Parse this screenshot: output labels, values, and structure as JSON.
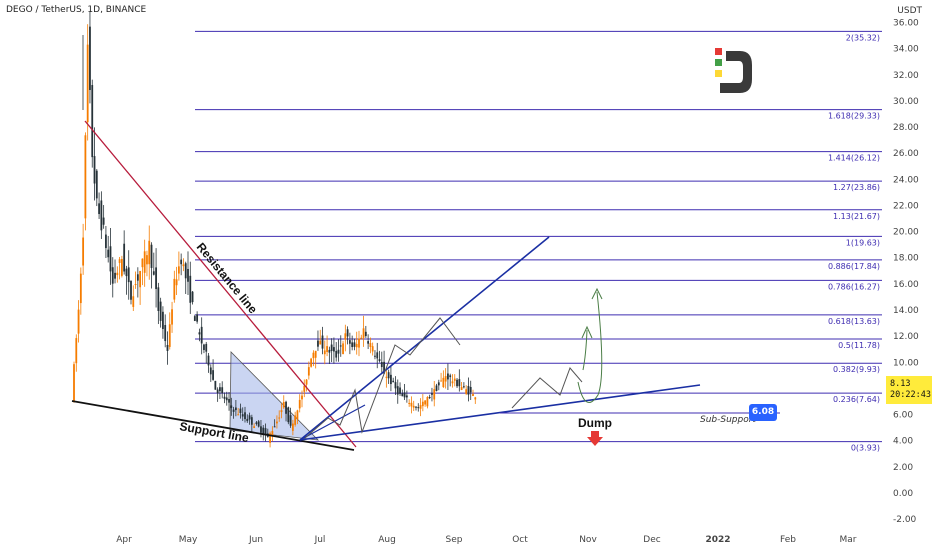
{
  "header": {
    "symbol": "DEGO / TetherUS, 1D, BINANCE",
    "currency": "USDT"
  },
  "price_tag": {
    "price": "8.13",
    "countdown": "20:22:43"
  },
  "sub_support": {
    "label": "Sub-Support",
    "value": "6.08"
  },
  "annotations": {
    "resistance": "Resistance line",
    "support": "Support line",
    "dump": "Dump"
  },
  "colors": {
    "background": "#ffffff",
    "fib": "#3f2db1",
    "resistance": "#b71c3c",
    "channel": "#1a2fa3",
    "support": "#111111",
    "arrow": "#4a7d45",
    "candle_up": "#f57c00",
    "candle_down": "#263238",
    "wedge_fill": "#9fb3e8",
    "sub_support_tag": "#2962ff",
    "price_tag": "#ffeb3b"
  },
  "chart_data": {
    "type": "candlestick",
    "title": "DEGO / TetherUS, 1D, BINANCE",
    "ylabel": "USDT",
    "ylim": [
      -3,
      37
    ],
    "y_ticks": [
      "36.00",
      "34.00",
      "32.00",
      "30.00",
      "28.00",
      "26.00",
      "24.00",
      "22.00",
      "20.00",
      "18.00",
      "16.00",
      "14.00",
      "12.00",
      "10.00",
      "8.00",
      "6.00",
      "4.00",
      "2.00",
      "0.00",
      "-2.00"
    ],
    "x_ticks": [
      "Apr",
      "May",
      "Jun",
      "Jul",
      "Aug",
      "Sep",
      "Oct",
      "Nov",
      "Dec",
      "2022",
      "Feb",
      "Mar"
    ],
    "fib_levels": [
      {
        "ratio": "0",
        "price": "3.93"
      },
      {
        "ratio": "0.236",
        "price": "7.64"
      },
      {
        "ratio": "0.382",
        "price": "9.93"
      },
      {
        "ratio": "0.5",
        "price": "11.78"
      },
      {
        "ratio": "0.618",
        "price": "13.63"
      },
      {
        "ratio": "0.786",
        "price": "16.27"
      },
      {
        "ratio": "0.886",
        "price": "17.84"
      },
      {
        "ratio": "1",
        "price": "19.63"
      },
      {
        "ratio": "1.13",
        "price": "21.67"
      },
      {
        "ratio": "1.27",
        "price": "23.86"
      },
      {
        "ratio": "1.414",
        "price": "26.12"
      },
      {
        "ratio": "1.618",
        "price": "29.33"
      },
      {
        "ratio": "2",
        "price": "35.32"
      }
    ],
    "price_series": [
      [
        0,
        7.5
      ],
      [
        3,
        14
      ],
      [
        5,
        20
      ],
      [
        7,
        34
      ],
      [
        9,
        26
      ],
      [
        11,
        22
      ],
      [
        14,
        20
      ],
      [
        18,
        16
      ],
      [
        22,
        18
      ],
      [
        26,
        15
      ],
      [
        30,
        17
      ],
      [
        34,
        19
      ],
      [
        38,
        14
      ],
      [
        42,
        11
      ],
      [
        45,
        16
      ],
      [
        48,
        18
      ],
      [
        52,
        15
      ],
      [
        56,
        12
      ],
      [
        60,
        10
      ],
      [
        63,
        8
      ],
      [
        66,
        7.5
      ],
      [
        70,
        6.5
      ],
      [
        74,
        6
      ],
      [
        78,
        5.5
      ],
      [
        82,
        5
      ],
      [
        86,
        4.2
      ],
      [
        90,
        5.5
      ],
      [
        93,
        6.8
      ],
      [
        96,
        5
      ],
      [
        99,
        6.5
      ],
      [
        102,
        8
      ],
      [
        105,
        10.5
      ],
      [
        108,
        11.5
      ],
      [
        112,
        11
      ],
      [
        116,
        10.5
      ],
      [
        120,
        12
      ],
      [
        124,
        11
      ],
      [
        128,
        12.5
      ],
      [
        132,
        11
      ],
      [
        136,
        9.5
      ],
      [
        140,
        8.5
      ],
      [
        144,
        7.5
      ],
      [
        148,
        7
      ],
      [
        152,
        6.5
      ],
      [
        156,
        7.2
      ],
      [
        160,
        8
      ],
      [
        164,
        9
      ],
      [
        168,
        8.5
      ],
      [
        172,
        8
      ],
      [
        176,
        7.5
      ]
    ],
    "lines": [
      {
        "name": "Resistance line",
        "from": {
          "day": 7,
          "price": 28.5
        },
        "to": {
          "day": 123,
          "price": 3.5
        }
      },
      {
        "name": "Support line",
        "from": {
          "day": 0,
          "price": 7.2
        },
        "to": {
          "day": 123,
          "price": 3.3
        }
      },
      {
        "name": "Channel upper",
        "from": {
          "day": 92,
          "price": 4
        },
        "to": {
          "day": 210,
          "price": 19.6
        }
      },
      {
        "name": "Channel lower",
        "from": {
          "day": 92,
          "price": 4
        },
        "to": {
          "day": 273,
          "price": 8.5
        }
      }
    ]
  }
}
